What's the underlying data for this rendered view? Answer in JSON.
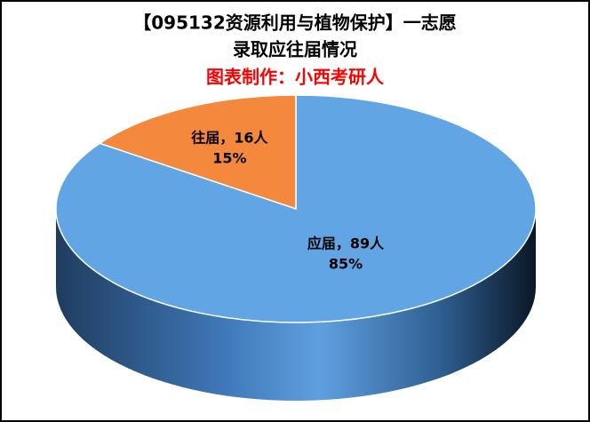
{
  "chart_data": {
    "type": "pie3d",
    "title": [
      "【095132资源利用与植物保护】一志愿",
      "录取应往届情况"
    ],
    "subtitle": "图表制作：小西考研人",
    "categories": [
      "应届",
      "往届"
    ],
    "values": [
      89,
      16
    ],
    "value_labels": [
      "应届，89人",
      "往届，16人"
    ],
    "percents": [
      85,
      15
    ],
    "percent_labels": [
      "85%",
      "15%"
    ],
    "colors": [
      "#62a5e4",
      "#f4883c"
    ]
  }
}
